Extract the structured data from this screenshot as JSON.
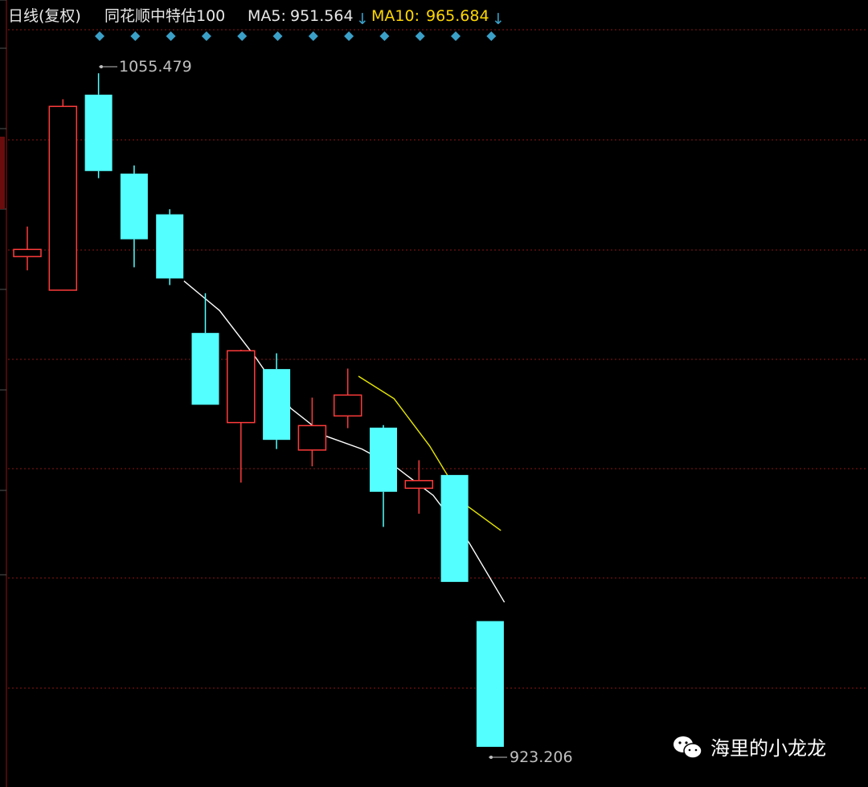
{
  "header": {
    "period_label": "日线(复权)",
    "instrument": "同花顺中特估100",
    "ma5_label": "MA5:",
    "ma5_value": "951.564",
    "ma10_label": "MA10:",
    "ma10_value": "965.684",
    "down_arrow": "↓"
  },
  "watermark": {
    "text": "海里的小龙龙",
    "icon": "wechat-icon"
  },
  "colors": {
    "up": "#ff3b3b",
    "down": "#54ffff",
    "ma5": "#ffffff",
    "ma10": "#e6e600",
    "grid": "#8b1414",
    "axis": "#8b1414",
    "label": "#c0c0c0",
    "marker": "#3aa0c8",
    "header_text": "#e8e8e8",
    "ma10_text": "#ffd700",
    "arrow": "#3aa0c8"
  },
  "chart_data": {
    "type": "candlestick",
    "y_range": [
      918,
      1062
    ],
    "grid": true,
    "max_label": "1055.479",
    "min_label": "923.206",
    "candles": [
      {
        "open": 1019.5,
        "close": 1020.9,
        "high": 1025.4,
        "low": 1016.8
      },
      {
        "open": 1012.9,
        "close": 1049.0,
        "high": 1050.4,
        "low": 1012.9
      },
      {
        "open": 1051.3,
        "close": 1036.3,
        "high": 1055.5,
        "low": 1034.9
      },
      {
        "open": 1035.8,
        "close": 1022.9,
        "high": 1037.4,
        "low": 1017.4
      },
      {
        "open": 1027.8,
        "close": 1015.2,
        "high": 1028.8,
        "low": 1013.9
      },
      {
        "open": 1004.5,
        "close": 990.4,
        "high": 1012.3,
        "low": 990.4
      },
      {
        "open": 986.9,
        "close": 1001.0,
        "high": 1001.2,
        "low": 975.1
      },
      {
        "open": 997.4,
        "close": 983.5,
        "high": 1000.5,
        "low": 981.7
      },
      {
        "open": 981.5,
        "close": 986.3,
        "high": 991.8,
        "low": 978.3
      },
      {
        "open": 988.2,
        "close": 992.3,
        "high": 997.5,
        "low": 985.8
      },
      {
        "open": 985.9,
        "close": 973.3,
        "high": 986.4,
        "low": 966.4
      },
      {
        "open": 974.0,
        "close": 975.5,
        "high": 979.5,
        "low": 969.0
      },
      {
        "open": 976.6,
        "close": 955.6,
        "high": 976.6,
        "low": 955.6
      },
      {
        "open": 947.9,
        "close": 923.2,
        "high": 947.9,
        "low": 923.2
      }
    ],
    "ma5": [
      {
        "i": 4.4,
        "v": 1014.7
      },
      {
        "i": 5.4,
        "v": 1008.9
      },
      {
        "i": 6.4,
        "v": 999.8
      },
      {
        "i": 7.4,
        "v": 989.7
      },
      {
        "i": 8.4,
        "v": 984.2
      },
      {
        "i": 9.4,
        "v": 981.7
      },
      {
        "i": 10.4,
        "v": 977.9
      },
      {
        "i": 11.4,
        "v": 972.6
      },
      {
        "i": 12.4,
        "v": 963.4
      },
      {
        "i": 13.4,
        "v": 951.6
      }
    ],
    "ma10": [
      {
        "i": 9.3,
        "v": 996.0
      },
      {
        "i": 10.3,
        "v": 991.6
      },
      {
        "i": 11.3,
        "v": 982.3
      },
      {
        "i": 12.3,
        "v": 970.8
      },
      {
        "i": 13.3,
        "v": 965.7
      }
    ]
  }
}
